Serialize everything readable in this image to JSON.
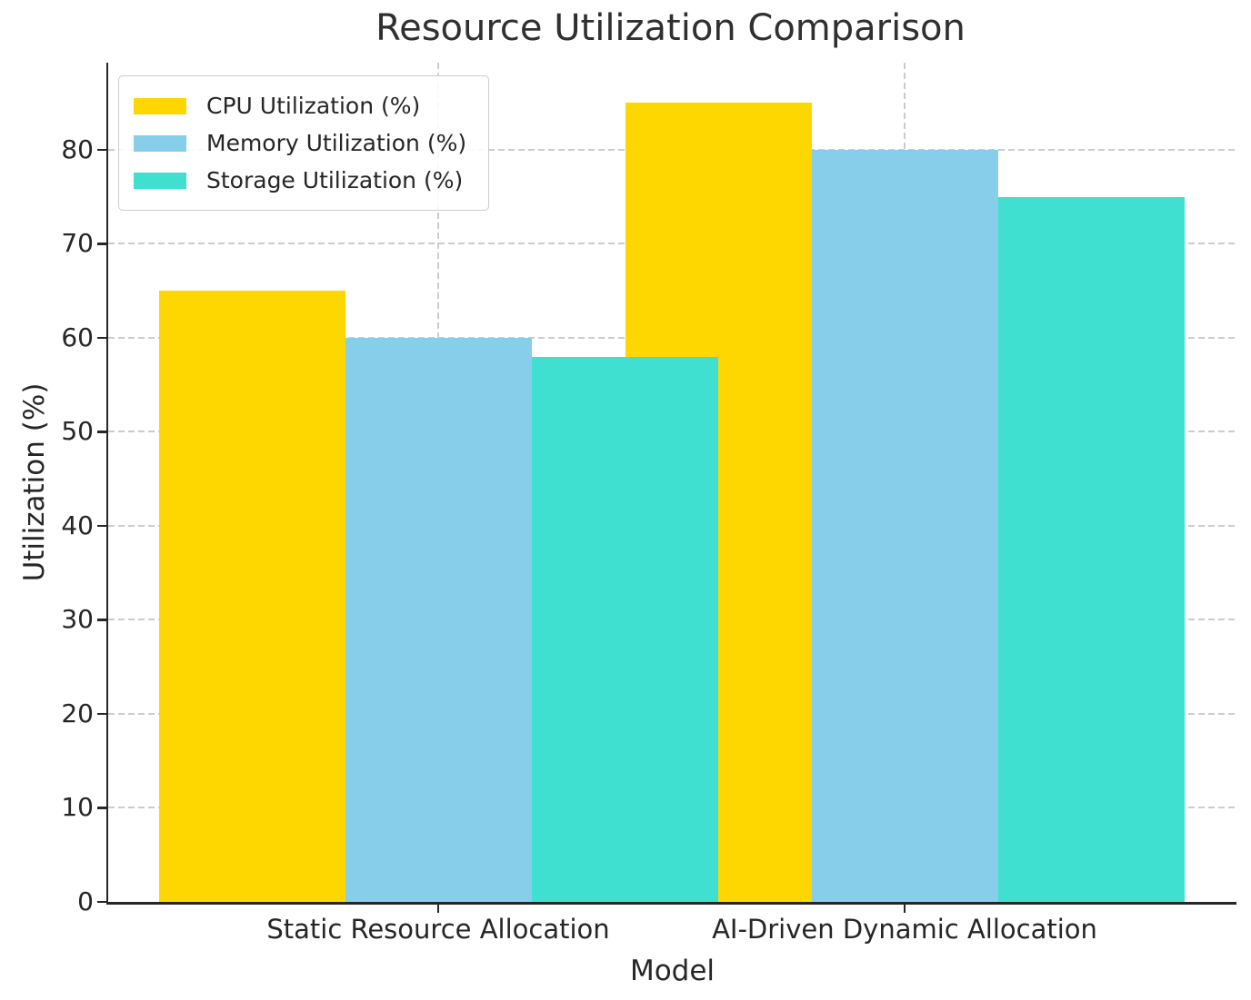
{
  "title": "Resource Utilization Comparison",
  "colors": {
    "cpu": "#FFD700",
    "memory": "#87CEEB",
    "storage": "#40E0D0",
    "text": "#262626",
    "grid": "#cccccc",
    "spine": "#262626",
    "legend_border": "#cccccc"
  },
  "chart_data": {
    "type": "bar",
    "title": "Resource Utilization Comparison",
    "xlabel": "Model",
    "ylabel": "Utilization (%)",
    "categories": [
      "Static Resource Allocation",
      "AI-Driven Dynamic Allocation"
    ],
    "series": [
      {
        "name": "CPU Utilization (%)",
        "color": "#FFD700",
        "values": [
          65,
          85
        ]
      },
      {
        "name": "Memory Utilization (%)",
        "color": "#87CEEB",
        "values": [
          60,
          80
        ]
      },
      {
        "name": "Storage Utilization (%)",
        "color": "#40E0D0",
        "values": [
          58,
          75
        ]
      }
    ],
    "ylim": [
      0,
      89.25
    ],
    "yticks": [
      0,
      10,
      20,
      30,
      40,
      50,
      60,
      70,
      80
    ],
    "grid": true,
    "grid_style": "dashed",
    "legend_position": "upper left"
  }
}
